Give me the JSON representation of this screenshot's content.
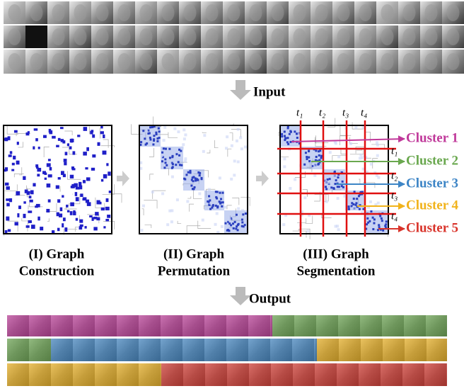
{
  "input_label": "Input",
  "output_label": "Output",
  "stages": [
    {
      "line1": "(I) Graph",
      "line2": "Construction"
    },
    {
      "line1": "(II) Graph",
      "line2": "Permutation"
    },
    {
      "line1": "(III) Graph",
      "line2": "Segmentation"
    }
  ],
  "thresholds": [
    "t₁",
    "t₂",
    "t₃",
    "t₄"
  ],
  "clusters": [
    {
      "name": "Cluster 1",
      "color": "#c0399a"
    },
    {
      "name": "Cluster 2",
      "color": "#6aa84f"
    },
    {
      "name": "Cluster 3",
      "color": "#3d85c6"
    },
    {
      "name": "Cluster 4",
      "color": "#f1b31c"
    },
    {
      "name": "Cluster 5",
      "color": "#d9342b"
    }
  ]
}
